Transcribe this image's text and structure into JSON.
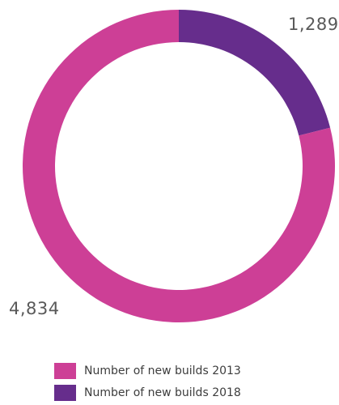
{
  "chart_data": {
    "type": "pie",
    "variant": "donut",
    "categories": [
      "Number of new builds 2013",
      "Number of new builds 2018"
    ],
    "values": [
      4834,
      1289
    ],
    "value_labels": [
      "4,834",
      "1,289"
    ],
    "colors": [
      "#cd3f96",
      "#662d8c"
    ],
    "legend": {
      "position": "bottom",
      "items": [
        {
          "label": "Number of new builds 2013",
          "color": "#cd3f96"
        },
        {
          "label": "Number of new builds 2018",
          "color": "#662d8c"
        }
      ]
    },
    "title": ""
  }
}
